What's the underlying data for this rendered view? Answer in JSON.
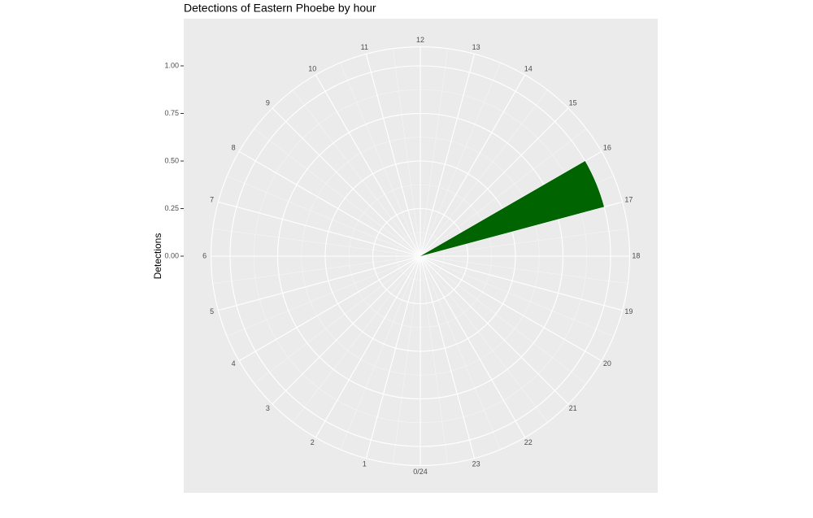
{
  "chart_data": {
    "type": "polar_bar",
    "title": "Detections of Eastern Phoebe by hour",
    "y_label": "Detections",
    "categories": [
      "0/24",
      "1",
      "2",
      "3",
      "4",
      "5",
      "6",
      "7",
      "8",
      "9",
      "10",
      "11",
      "12",
      "13",
      "14",
      "15",
      "16",
      "17",
      "18",
      "19",
      "20",
      "21",
      "22",
      "23"
    ],
    "values": [
      0,
      0,
      0,
      0,
      0,
      0,
      0,
      0,
      0,
      0,
      0,
      0,
      0,
      0,
      0,
      0,
      1,
      0,
      0,
      0,
      0,
      0,
      0,
      0
    ],
    "color": "#006400",
    "ylim": [
      0,
      1.1
    ],
    "yticks": [
      {
        "value": 0,
        "label": "0.00"
      },
      {
        "value": 0.25,
        "label": "0.25"
      },
      {
        "value": 0.5,
        "label": "0.50"
      },
      {
        "value": 0.75,
        "label": "0.75"
      },
      {
        "value": 1,
        "label": "1.00"
      }
    ],
    "grid": true
  }
}
